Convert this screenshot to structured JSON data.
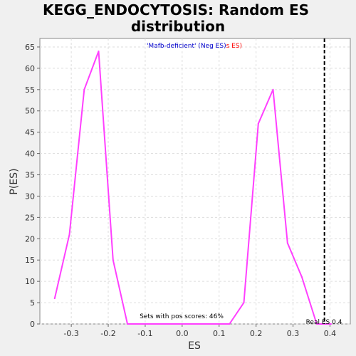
{
  "chart_data": {
    "type": "line",
    "title_line1": "KEGG_ENDOCYTOSIS: Random ES",
    "title_line2": "distribution",
    "xlabel": "ES",
    "ylabel": "P(ES)",
    "xlim": [
      -0.385,
      0.455
    ],
    "ylim": [
      0,
      67
    ],
    "x_ticks": [
      -0.3,
      -0.2,
      -0.1,
      0.0,
      0.1,
      0.2,
      0.3,
      0.4
    ],
    "x_tick_labels": [
      "-0.3",
      "-0.2",
      "-0.1",
      "0.0",
      "0.1",
      "0.2",
      "0.3",
      "0.4"
    ],
    "y_ticks": [
      0,
      5,
      10,
      15,
      20,
      25,
      30,
      35,
      40,
      45,
      50,
      55,
      60,
      65
    ],
    "y_tick_labels": [
      "0",
      "5",
      "10",
      "15",
      "20",
      "25",
      "30",
      "35",
      "40",
      "45",
      "50",
      "55",
      "60",
      "65"
    ],
    "grid": true,
    "series": [
      {
        "color": "#ff40ff",
        "x": [
          -0.345,
          -0.305,
          -0.265,
          -0.226,
          -0.187,
          -0.148,
          -0.108,
          -0.069,
          -0.03,
          0.01,
          0.049,
          0.088,
          0.128,
          0.167,
          0.206,
          0.246,
          0.285,
          0.324,
          0.364,
          0.403
        ],
        "y": [
          6,
          21,
          55,
          64,
          15,
          0,
          0,
          0,
          0,
          0,
          0,
          0,
          0,
          5,
          47,
          55,
          19,
          11,
          0,
          0
        ]
      }
    ],
    "legend": {
      "position": "top-center",
      "part1_text": "'Mafb-deficient' (Neg ES)",
      "part1_color": "#0000cc",
      "part2_text": "s ES)",
      "part2_color": "#ff0000"
    },
    "real_es": {
      "value": 0.385,
      "label": "Real ES 0.4",
      "line_color": "#000000"
    },
    "annotation": "Sets with pos scores: 46%"
  }
}
